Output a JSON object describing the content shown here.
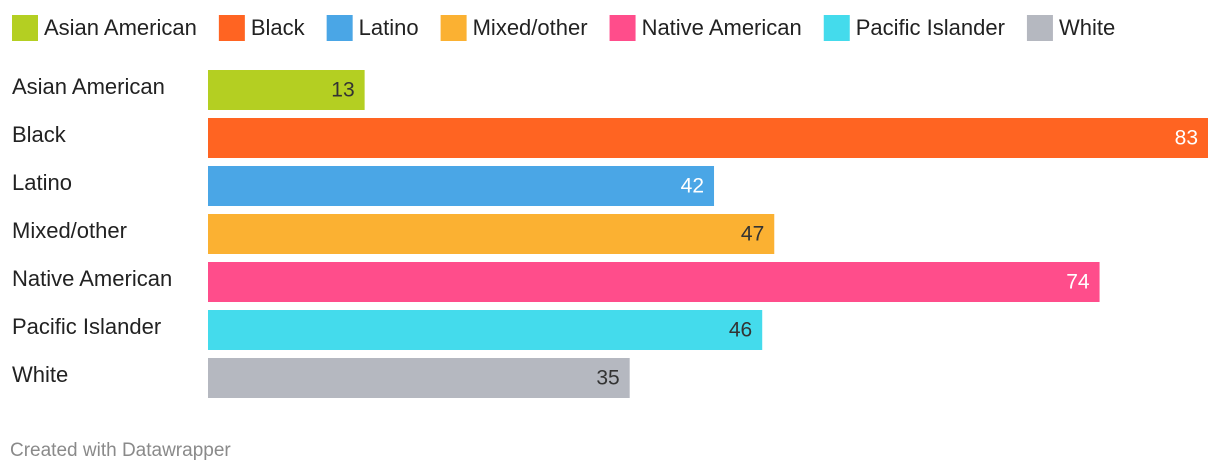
{
  "chart_data": {
    "type": "bar",
    "categories": [
      "Asian American",
      "Black",
      "Latino",
      "Mixed/other",
      "Native American",
      "Pacific Islander",
      "White"
    ],
    "values": [
      13,
      83,
      42,
      47,
      74,
      46,
      35
    ],
    "colors": [
      "#b4cf22",
      "#ff6422",
      "#4aa6e6",
      "#fbb132",
      "#ff4d8b",
      "#44dbec",
      "#b5b8c0"
    ],
    "legend": "top"
  },
  "footer": "Created with Datawrapper"
}
